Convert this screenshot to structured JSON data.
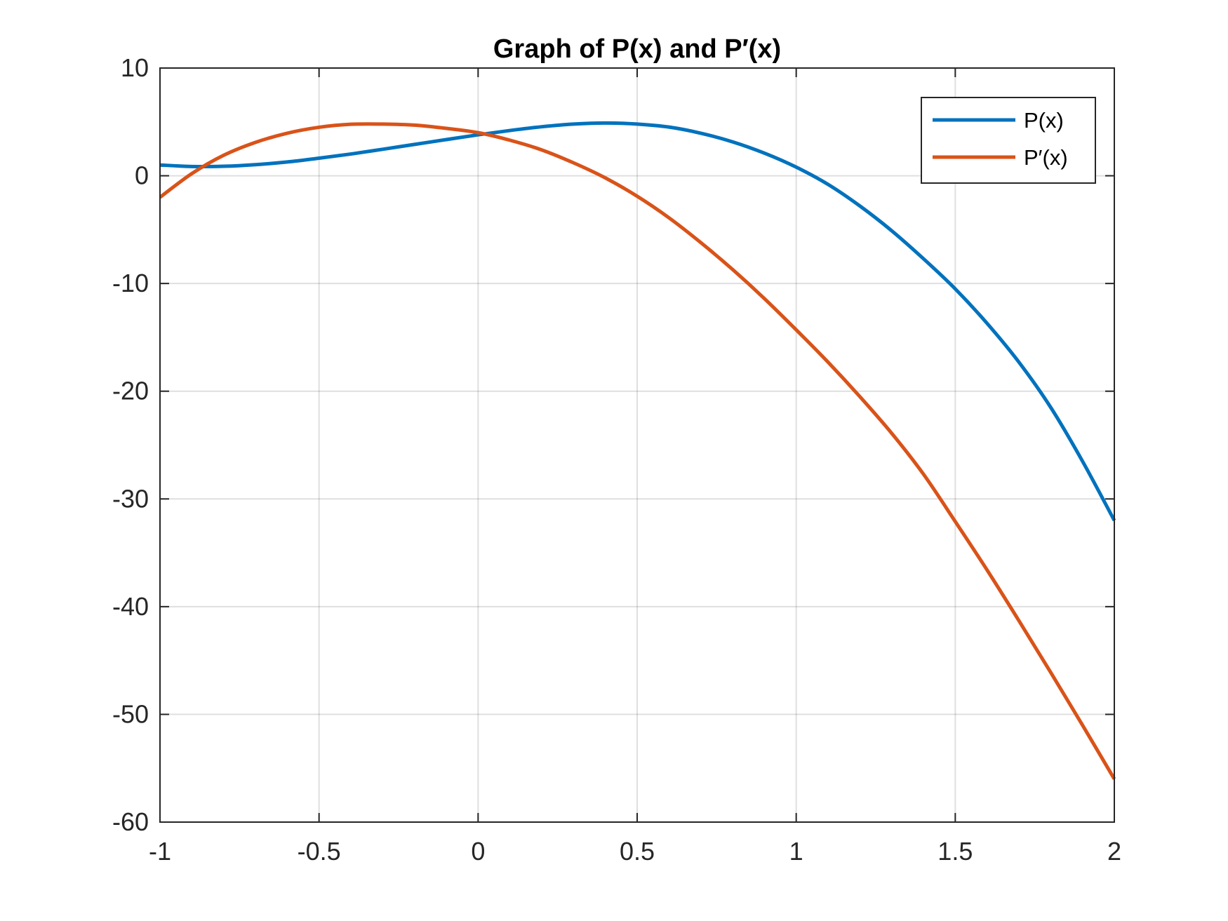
{
  "chart_data": {
    "type": "line",
    "title": "Graph of P(x) and P′(x)",
    "xlabel": "",
    "ylabel": "",
    "xlim": [
      -1,
      2
    ],
    "ylim": [
      -60,
      10
    ],
    "x_ticks": [
      -1,
      -0.5,
      0,
      0.5,
      1,
      1.5,
      2
    ],
    "x_tick_labels": [
      "-1",
      "-0.5",
      "0",
      "0.5",
      "1",
      "1.5",
      "2"
    ],
    "y_ticks": [
      -60,
      -50,
      -40,
      -30,
      -20,
      -10,
      0,
      10
    ],
    "y_tick_labels": [
      "-60",
      "-50",
      "-40",
      "-30",
      "-20",
      "-10",
      "0",
      "10"
    ],
    "grid": true,
    "legend_position": "top-right",
    "x": [
      -1,
      -0.9,
      -0.8,
      -0.7,
      -0.6,
      -0.5,
      -0.4,
      -0.3,
      -0.2,
      -0.1,
      0,
      0.1,
      0.2,
      0.3,
      0.4,
      0.5,
      0.6,
      0.7,
      0.8,
      0.9,
      1,
      1.1,
      1.2,
      1.3,
      1.4,
      1.5,
      1.6,
      1.7,
      1.8,
      1.9,
      2
    ],
    "series": [
      {
        "name": "P(x)",
        "color": "#0072BD",
        "values": [
          1,
          0.86,
          0.88,
          1.03,
          1.28,
          1.63,
          2.02,
          2.46,
          2.91,
          3.36,
          3.8,
          4.2,
          4.55,
          4.8,
          4.9,
          4.8,
          4.52,
          3.95,
          3.15,
          2.1,
          0.8,
          -0.8,
          -2.8,
          -5.1,
          -7.7,
          -10.5,
          -13.7,
          -17.3,
          -21.5,
          -26.5,
          -32
        ]
      },
      {
        "name": "P′(x)",
        "color": "#D95319",
        "values": [
          -2,
          0.2,
          1.9,
          3.1,
          3.95,
          4.5,
          4.78,
          4.8,
          4.7,
          4.4,
          4,
          3.3,
          2.4,
          1.2,
          -0.2,
          -1.9,
          -3.9,
          -6.2,
          -8.7,
          -11.4,
          -14.3,
          -17.3,
          -20.5,
          -23.9,
          -27.7,
          -32.1,
          -36.6,
          -41.3,
          -46.1,
          -51,
          -56
        ]
      }
    ]
  }
}
